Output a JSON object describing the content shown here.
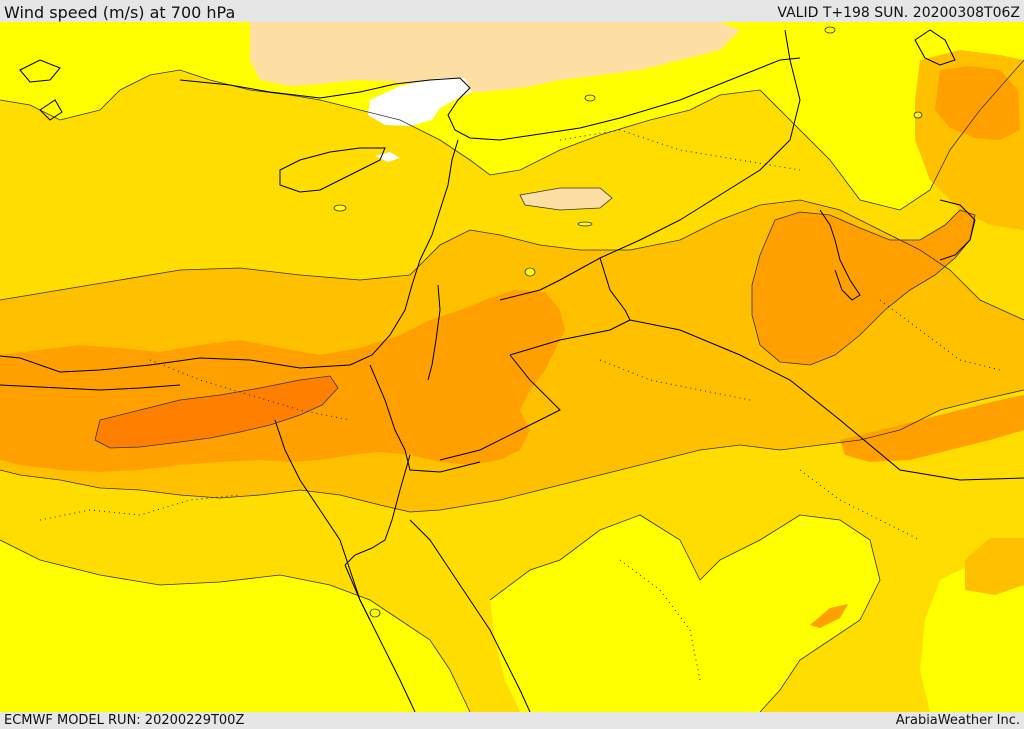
{
  "header": {
    "title": "Wind speed (m/s) at 700 hPa",
    "valid": "VALID T+198 SUN. 20200308T06Z"
  },
  "footer": {
    "model_run": "ECMWF MODEL RUN: 20200229T00Z",
    "credit": "ArabiaWeather Inc."
  },
  "map": {
    "colors": {
      "light": "#ffff00",
      "peach": "#fddfa4",
      "gold": "#ffdd00",
      "amber": "#ffc000",
      "orange": "#ffa000",
      "dark_orange": "#ff8000",
      "white": "#ffffff",
      "line": "#000000"
    }
  }
}
